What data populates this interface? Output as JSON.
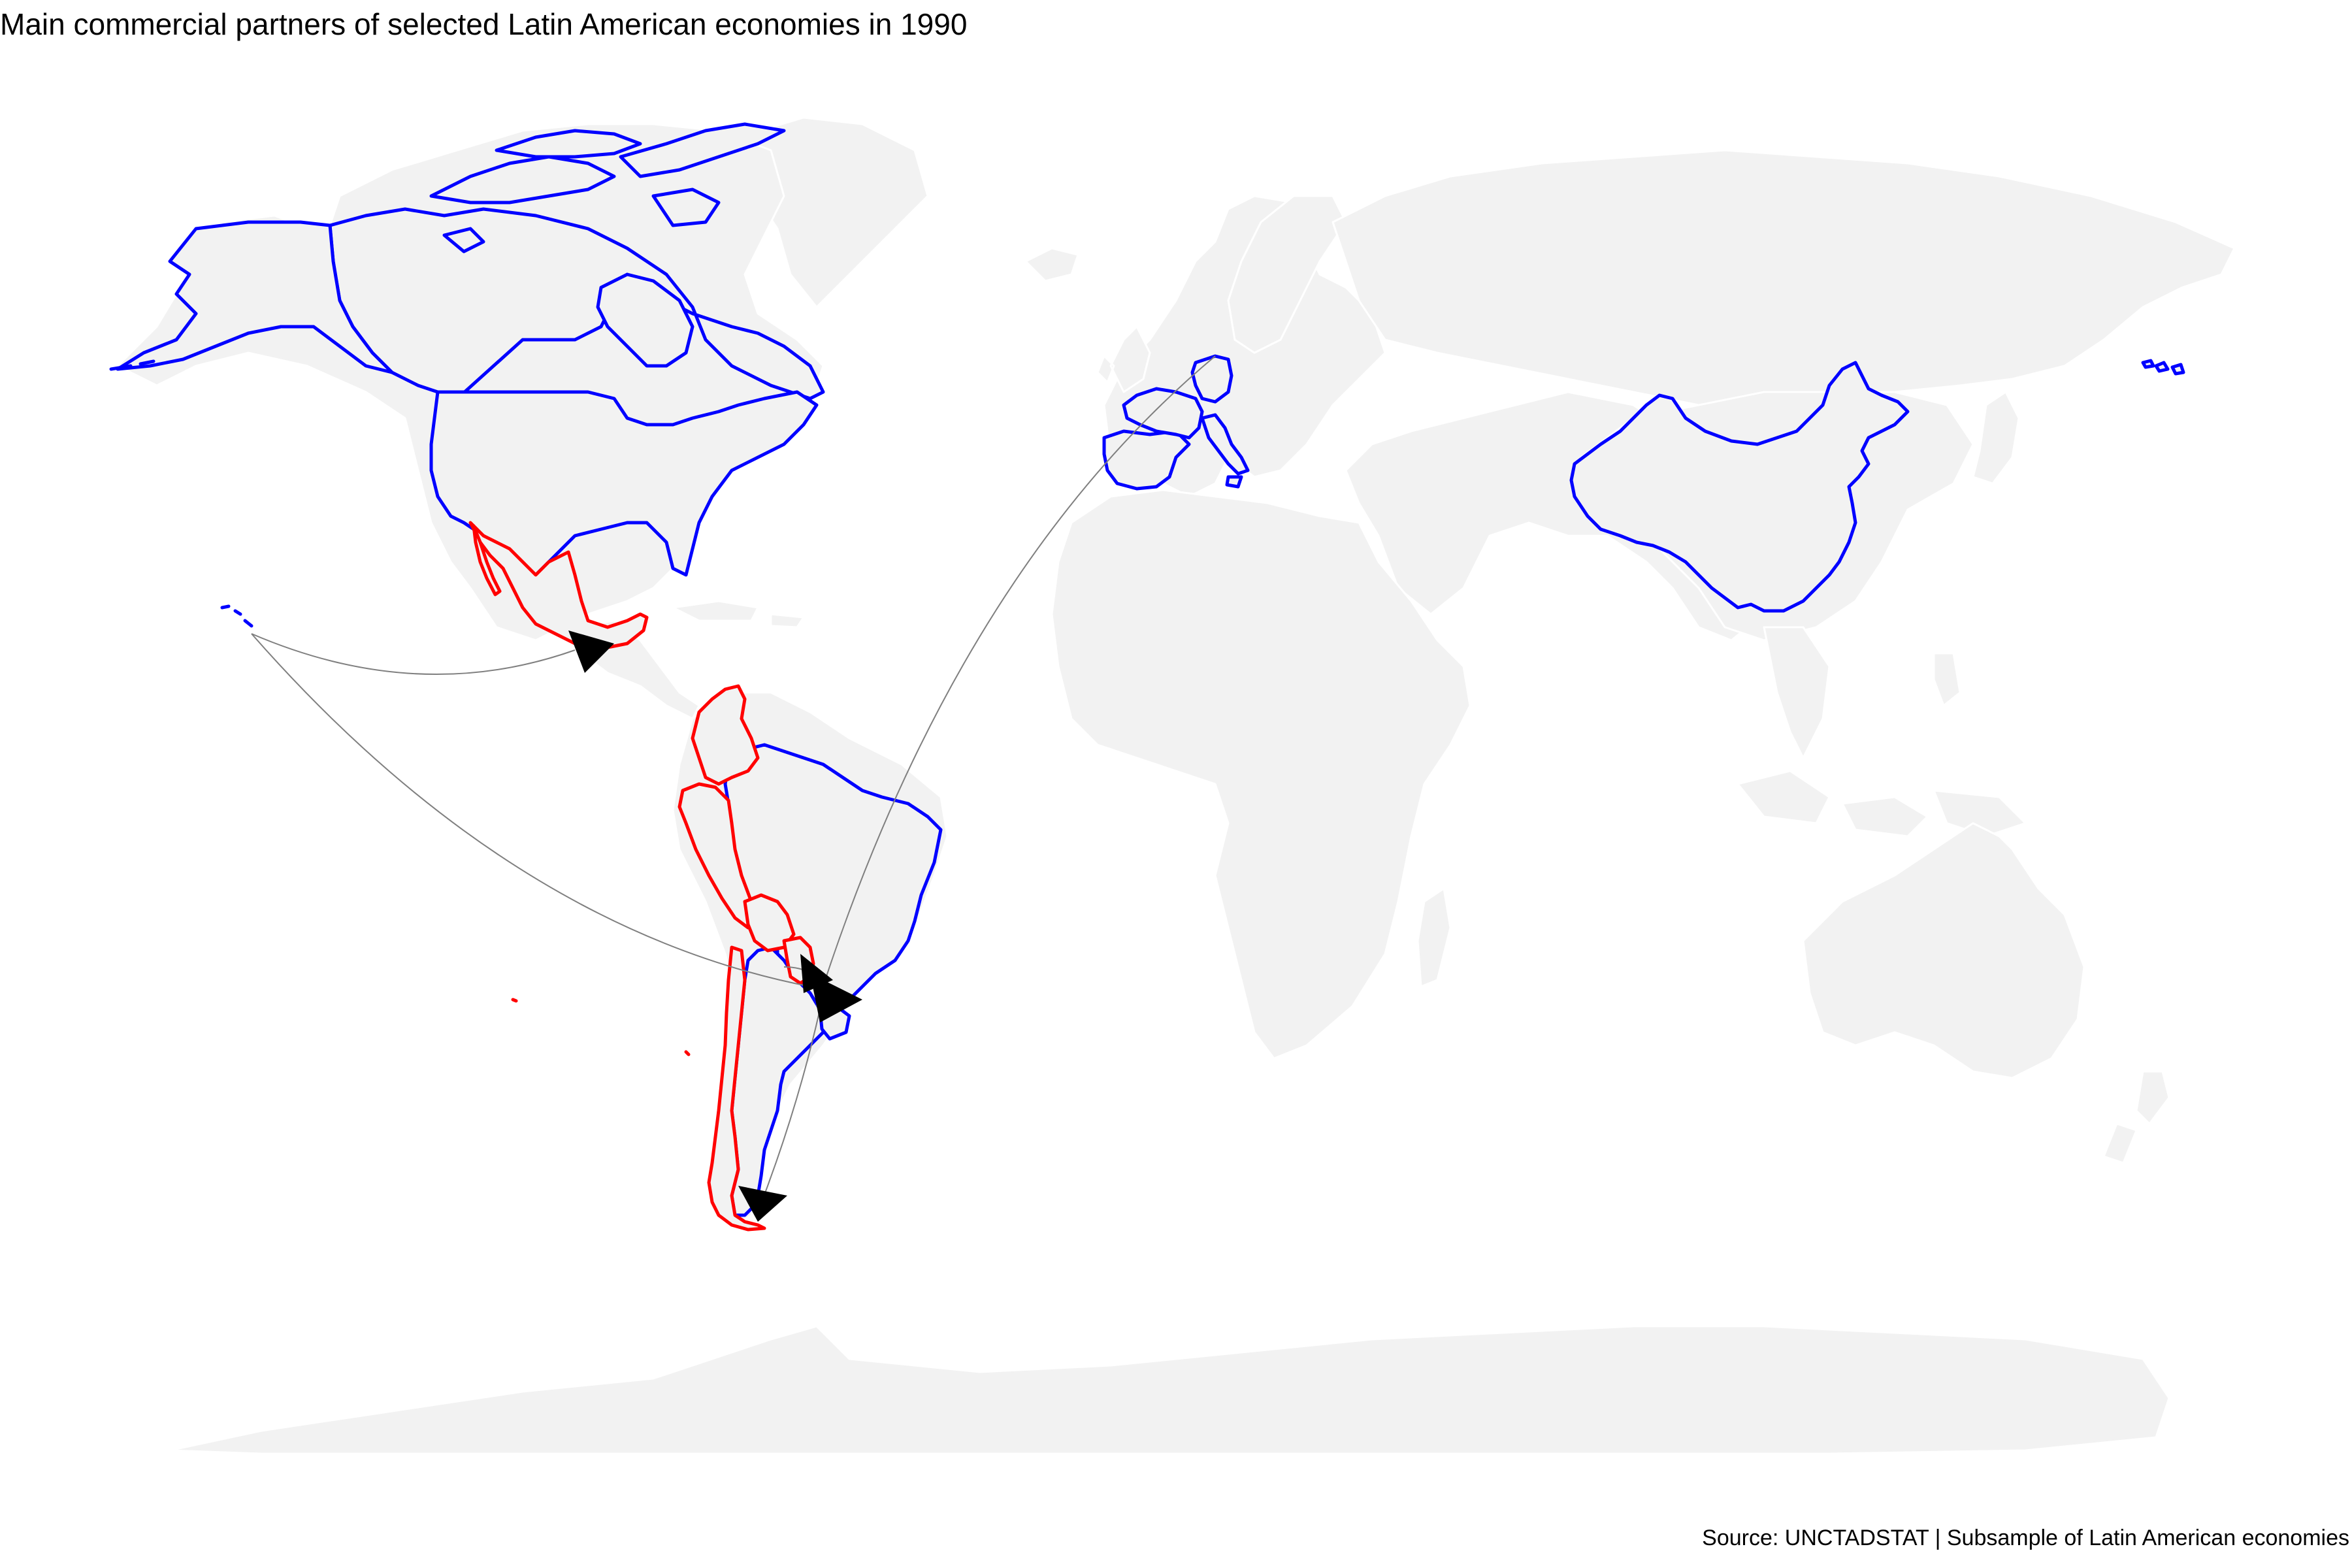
{
  "title": "Main commercial partners of selected Latin American economies in 1990",
  "caption": "Source: UNCTADSTAT | Subsample of Latin American economies",
  "colors": {
    "land": "#f2f2f2",
    "country_border": "#ffffff",
    "partner_outline": "#0000ff",
    "origin_outline": "#ff0000",
    "flow_line": "#7f7f7f",
    "arrow_head": "#000000"
  },
  "map": {
    "projection": "equirectangular",
    "origin_economies": [
      "Mexico",
      "Colombia",
      "Ecuador",
      "Peru",
      "Bolivia",
      "Chile",
      "Paraguay"
    ],
    "partner_economies": [
      "United States",
      "Canada",
      "Brazil",
      "Argentina",
      "Uruguay",
      "Germany",
      "France",
      "Italy",
      "Spain",
      "Portugal",
      "China",
      "Japan"
    ],
    "flows": [
      {
        "from": "Japan",
        "to": "Mexico"
      },
      {
        "from": "Japan",
        "to": "Paraguay"
      },
      {
        "from": "Germany",
        "to": "Argentina"
      },
      {
        "from": "Brazil",
        "to": "Uruguay"
      },
      {
        "from": "Argentina",
        "to": "Chile"
      }
    ]
  }
}
